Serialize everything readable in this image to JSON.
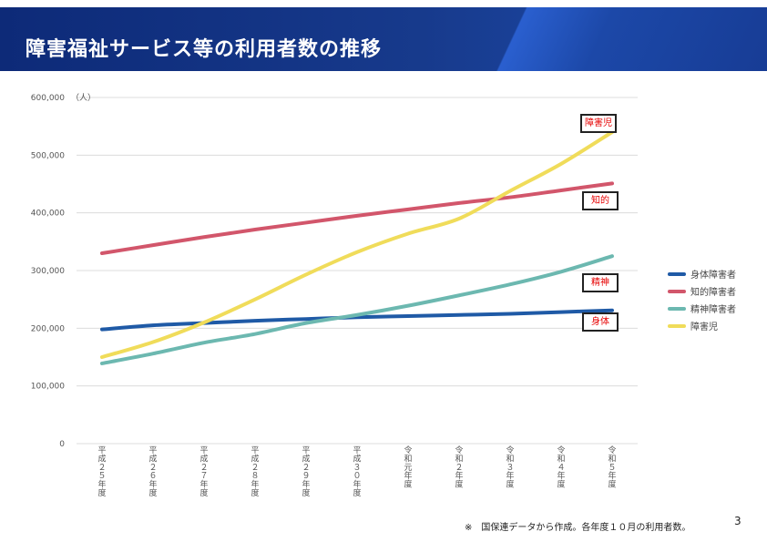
{
  "slide": {
    "title": "障害福祉サービス等の利用者数の推移",
    "footnote": "※　国保連データから作成。各年度１０月の利用者数。",
    "page_number": "3"
  },
  "chart_data": {
    "type": "line",
    "unit_label": "（人）",
    "categories": [
      "平成２５年度",
      "平成２６年度",
      "平成２７年度",
      "平成２８年度",
      "平成２９年度",
      "平成３０年度",
      "令和元年度",
      "令和２年度",
      "令和３年度",
      "令和４年度",
      "令和５年度"
    ],
    "ylim": [
      0,
      600000
    ],
    "yticks": [
      {
        "value": 0,
        "label": "0"
      },
      {
        "value": 100000,
        "label": "100,000"
      },
      {
        "value": 200000,
        "label": "200,000"
      },
      {
        "value": 300000,
        "label": "300,000"
      },
      {
        "value": 400000,
        "label": "400,000"
      },
      {
        "value": 500000,
        "label": "500,000"
      },
      {
        "value": 600000,
        "label": "600,000"
      }
    ],
    "grid": true,
    "legend_position": "right",
    "series": [
      {
        "name": "身体障害者",
        "color": "#1f5aa6",
        "values": [
          198000,
          205000,
          209000,
          213000,
          216000,
          219000,
          221000,
          223000,
          225000,
          228000,
          231000
        ]
      },
      {
        "name": "知的障害者",
        "color": "#d2566b",
        "values": [
          330000,
          344000,
          358000,
          371000,
          383000,
          395000,
          406000,
          417000,
          427000,
          439000,
          451000
        ]
      },
      {
        "name": "精神障害者",
        "color": "#6cb8b0",
        "values": [
          139000,
          156000,
          175000,
          190000,
          209000,
          223000,
          239000,
          257000,
          276000,
          298000,
          325000
        ]
      },
      {
        "name": "障害児",
        "color": "#f0dc5a",
        "values": [
          150000,
          176000,
          210000,
          250000,
          293000,
          332000,
          364000,
          390000,
          438000,
          485000,
          540000
        ]
      }
    ],
    "callouts": [
      {
        "text": "障害児",
        "series": "障害児"
      },
      {
        "text": "知的",
        "series": "知的障害者"
      },
      {
        "text": "精神",
        "series": "精神障害者"
      },
      {
        "text": "身体",
        "series": "身体障害者"
      }
    ]
  }
}
